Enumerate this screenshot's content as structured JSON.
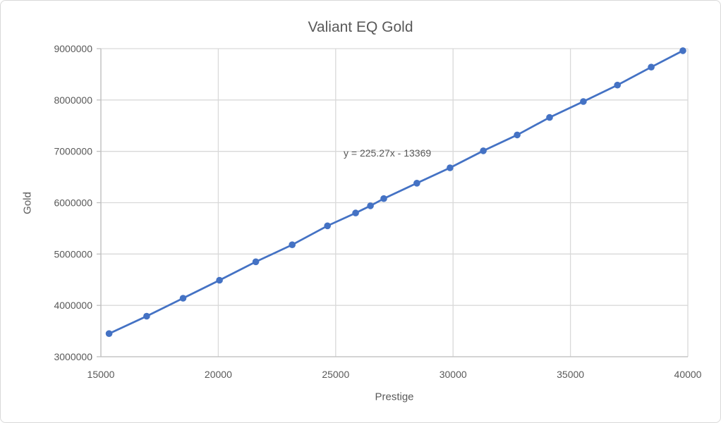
{
  "window": {
    "background": "#ffffff",
    "border_color": "#d9d9d9"
  },
  "colors": {
    "series": "#4472c4",
    "gridline": "#d9d9d9",
    "axis_line": "#bfbfbf",
    "text": "#595959"
  },
  "chart_data": {
    "type": "scatter",
    "title": "Valiant EQ Gold",
    "xlabel": "Prestige",
    "ylabel": "Gold",
    "xlim": [
      15000,
      40000
    ],
    "ylim": [
      3000000,
      9000000
    ],
    "x_ticks": [
      15000,
      20000,
      25000,
      30000,
      35000,
      40000
    ],
    "y_ticks": [
      3000000,
      4000000,
      5000000,
      6000000,
      7000000,
      8000000,
      9000000
    ],
    "grid": true,
    "legend": false,
    "series": [
      {
        "name": "Valiant EQ Gold",
        "color": "#4472c4",
        "marker": "circle",
        "line_style": "solid",
        "points": [
          [
            15350,
            3450000
          ],
          [
            16950,
            3790000
          ],
          [
            18500,
            4140000
          ],
          [
            20050,
            4490000
          ],
          [
            21600,
            4850000
          ],
          [
            23150,
            5180000
          ],
          [
            24650,
            5550000
          ],
          [
            25850,
            5800000
          ],
          [
            26480,
            5940000
          ],
          [
            27050,
            6080000
          ],
          [
            28460,
            6380000
          ],
          [
            29870,
            6680000
          ],
          [
            31290,
            7010000
          ],
          [
            32730,
            7320000
          ],
          [
            34110,
            7660000
          ],
          [
            35550,
            7970000
          ],
          [
            37000,
            8290000
          ],
          [
            38440,
            8640000
          ],
          [
            39790,
            8960000
          ]
        ]
      }
    ],
    "trendline": {
      "equation_label": "y = 225.27x - 13369",
      "slope": 225.27,
      "intercept": -13369
    }
  }
}
